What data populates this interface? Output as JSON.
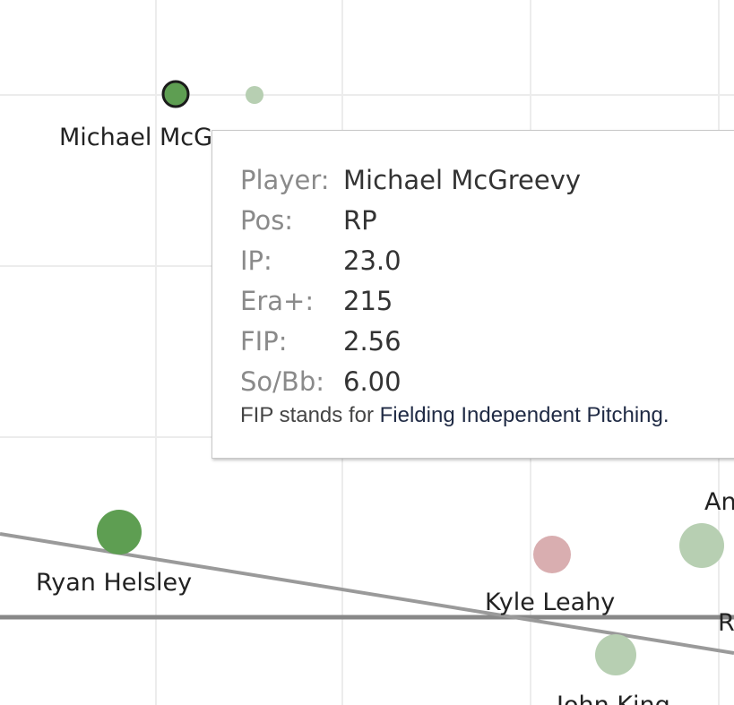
{
  "chart_data": {
    "type": "scatter",
    "title": "",
    "xlabel": "",
    "ylabel": "",
    "grid": true,
    "legend": "none",
    "colors": {
      "dark_green": "#5e9e52",
      "light_green": "#b7cfb2",
      "pink": "#d9aeb0",
      "trend": "#9a9a9a",
      "baseline": "#888888",
      "grid": "#ececec"
    },
    "points": [
      {
        "label": "Michael McGreevy",
        "shown_label": "Michael McG",
        "color": "dark_green",
        "selected": true
      },
      {
        "label": "",
        "color": "light_green"
      },
      {
        "label": "Ryan Helsley",
        "color": "dark_green"
      },
      {
        "label": "Kyle Leahy",
        "color": "pink"
      },
      {
        "label": "An",
        "color": "light_green"
      },
      {
        "label": "John King",
        "color": "light_green"
      },
      {
        "label": "R",
        "color": "light_green"
      }
    ]
  },
  "tooltip": {
    "rows": [
      {
        "label": "Player:",
        "value": "Michael McGreevy"
      },
      {
        "label": "Pos:",
        "value": "RP"
      },
      {
        "label": "IP:",
        "value": "23.0"
      },
      {
        "label": "Era+:",
        "value": "215"
      },
      {
        "label": "FIP:",
        "value": "2.56"
      },
      {
        "label": "So/Bb:",
        "value": "6.00"
      }
    ],
    "note_prefix": "FIP stands for ",
    "note_term": "Fielding Independent Pitching."
  }
}
